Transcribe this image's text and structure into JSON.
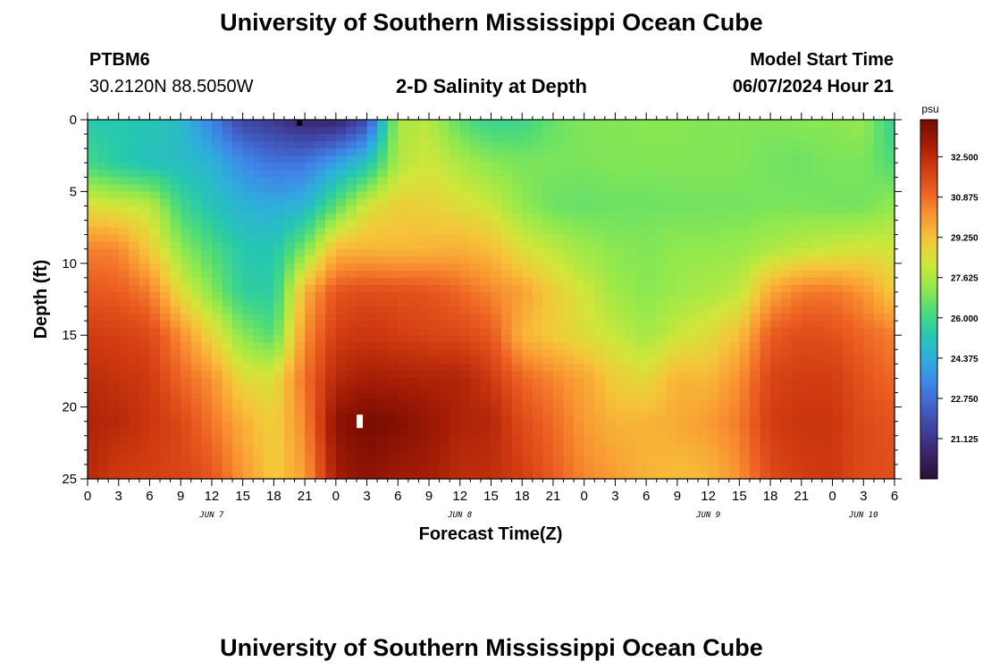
{
  "header": {
    "title": "University of Southern Mississippi Ocean Cube",
    "station": "PTBM6",
    "coordinates": "30.2120N  88.5050W",
    "product": "2-D Salinity at Depth",
    "model_start_label": "Model Start Time",
    "model_start_value": "06/07/2024 Hour 21"
  },
  "footer": {
    "title": "University of Southern Mississippi Ocean Cube"
  },
  "chart_data": {
    "type": "heatmap",
    "xlabel": "Forecast Time(Z)",
    "ylabel": "Depth (ft)",
    "x_tick_labels": [
      "0",
      "3",
      "6",
      "9",
      "12",
      "15",
      "18",
      "21",
      "0",
      "3",
      "6",
      "9",
      "12",
      "15",
      "18",
      "21",
      "0",
      "3",
      "6",
      "9",
      "12",
      "15",
      "18",
      "21",
      "0",
      "3",
      "6"
    ],
    "date_labels": [
      {
        "label": "JUN 7",
        "hour_index": 4
      },
      {
        "label": "JUN 8",
        "hour_index": 12
      },
      {
        "label": "JUN 9",
        "hour_index": 20
      },
      {
        "label": "JUN 10",
        "hour_index": 25
      }
    ],
    "y_ticks": [
      0,
      5,
      10,
      15,
      20,
      25
    ],
    "ylim": [
      25,
      0
    ],
    "x_range_hours": [
      0,
      78
    ],
    "colorbar": {
      "unit": "psu",
      "min": 19.5,
      "max": 34.0,
      "tick_labels": [
        "32.500",
        "30.875",
        "29.250",
        "27.625",
        "26.000",
        "24.375",
        "22.750",
        "21.125"
      ]
    },
    "hours": [
      0,
      3,
      6,
      9,
      12,
      15,
      18,
      21,
      24,
      27,
      30,
      33,
      36,
      39,
      42,
      45,
      48,
      51,
      54,
      57,
      60,
      63,
      66,
      69,
      72,
      75,
      78
    ],
    "depths_ft": [
      0,
      3,
      6,
      9,
      12,
      15,
      18,
      21,
      25
    ],
    "salinity_psu": [
      [
        25.3,
        25.3,
        25.2,
        24.8,
        23.2,
        21.6,
        21.2,
        20.5,
        20.4,
        21.8,
        27.6,
        27.8,
        26.4,
        25.8,
        25.9,
        26.6,
        27.0,
        27.0,
        27.1,
        27.1,
        27.0,
        27.0,
        27.0,
        27.1,
        27.1,
        27.3,
        25.6
      ],
      [
        26.0,
        25.4,
        25.0,
        24.9,
        24.5,
        23.5,
        22.9,
        23.0,
        24.0,
        25.0,
        27.7,
        28.2,
        27.6,
        27.1,
        26.9,
        26.9,
        26.9,
        27.0,
        27.0,
        27.0,
        27.0,
        27.0,
        26.8,
        26.7,
        26.9,
        26.9,
        26.2
      ],
      [
        28.5,
        28.2,
        27.9,
        26.0,
        25.1,
        24.5,
        24.3,
        24.6,
        26.4,
        28.3,
        28.9,
        28.8,
        28.5,
        28.1,
        27.2,
        26.7,
        26.6,
        26.7,
        26.7,
        26.8,
        26.8,
        26.8,
        26.9,
        26.9,
        26.8,
        26.8,
        27.3
      ],
      [
        30.5,
        30.4,
        29.0,
        27.2,
        26.2,
        25.3,
        25.2,
        26.9,
        29.4,
        29.5,
        29.4,
        29.5,
        29.6,
        29.3,
        28.4,
        27.9,
        27.4,
        27.1,
        27.0,
        27.2,
        27.2,
        27.3,
        27.6,
        27.9,
        28.1,
        28.3,
        28.2
      ],
      [
        31.3,
        31.2,
        30.6,
        28.5,
        27.1,
        25.6,
        25.5,
        29.6,
        31.4,
        31.6,
        31.5,
        31.4,
        31.0,
        30.4,
        29.9,
        28.9,
        28.2,
        27.4,
        27.1,
        27.4,
        27.6,
        27.9,
        29.8,
        30.6,
        30.7,
        30.1,
        29.0
      ],
      [
        32.0,
        31.9,
        31.7,
        30.3,
        28.7,
        27.1,
        26.3,
        30.2,
        32.0,
        32.2,
        32.0,
        31.8,
        31.7,
        31.3,
        29.5,
        29.0,
        28.5,
        28.0,
        27.5,
        28.1,
        28.5,
        29.3,
        31.2,
        31.6,
        31.5,
        31.0,
        30.5
      ],
      [
        32.5,
        32.3,
        32.1,
        31.0,
        30.2,
        28.5,
        28.4,
        30.8,
        32.6,
        33.0,
        32.9,
        32.8,
        32.8,
        32.1,
        31.0,
        30.4,
        29.8,
        28.9,
        28.6,
        29.5,
        29.4,
        30.2,
        31.8,
        32.0,
        32.0,
        31.4,
        30.9
      ],
      [
        32.8,
        32.6,
        32.2,
        31.7,
        30.7,
        29.6,
        28.8,
        30.4,
        33.5,
        33.9,
        33.7,
        33.3,
        32.8,
        32.7,
        31.6,
        30.9,
        30.0,
        29.5,
        29.5,
        29.7,
        30.0,
        30.6,
        32.0,
        32.2,
        32.2,
        31.6,
        31.4
      ],
      [
        32.6,
        32.0,
        31.9,
        31.8,
        31.4,
        30.1,
        29.0,
        29.9,
        33.0,
        33.5,
        33.1,
        33.0,
        32.5,
        32.4,
        32.0,
        31.2,
        30.4,
        30.0,
        29.5,
        29.3,
        29.4,
        30.2,
        31.6,
        32.0,
        32.1,
        31.6,
        31.5
      ]
    ],
    "markers": [
      {
        "color": "#000000",
        "hour": 20.5,
        "depth_ft": 0.2
      },
      {
        "color": "#ffffff",
        "hour": 26.3,
        "depth_ft": 21.0
      }
    ]
  },
  "colors": {
    "colormap": [
      "#2a0f33",
      "#3b2369",
      "#3f3f9c",
      "#4060c6",
      "#3f86e8",
      "#2eaedc",
      "#26c8b0",
      "#4edb79",
      "#93e94c",
      "#d1e63a",
      "#f6c43a",
      "#f99532",
      "#ec5f22",
      "#cf3a10",
      "#a41c05",
      "#730a02"
    ]
  }
}
